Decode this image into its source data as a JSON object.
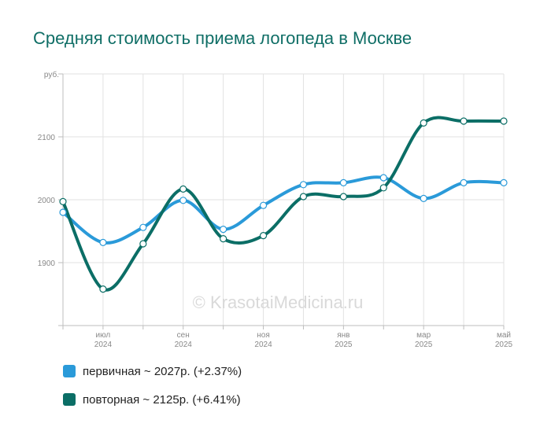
{
  "title": "Средняя стоимость приема логопеда в Москве",
  "watermark": "© KrasotaiMedicina.ru",
  "colors": {
    "primary": "#2a9ad9",
    "secondary": "#0b6e66",
    "title": "#0f6e66"
  },
  "legend": [
    {
      "label": "первичная ~ 2027р. (+2.37%)",
      "color": "#2a9ad9"
    },
    {
      "label": "повторная ~ 2125р. (+6.41%)",
      "color": "#0b6e66"
    }
  ],
  "chart_data": {
    "type": "line",
    "title": "Средняя стоимость приема логопеда в Москве",
    "ylabel": "руб.",
    "ylim": [
      1800,
      2200
    ],
    "yticks": [
      1900,
      2000,
      2100
    ],
    "x": [
      "2024-06",
      "2024-07",
      "2024-08",
      "2024-09",
      "2024-10",
      "2024-11",
      "2024-12",
      "2025-01",
      "2025-02",
      "2025-03",
      "2025-04",
      "2025-05"
    ],
    "xtick_labels": [
      {
        "month": "июл",
        "year": "2024",
        "index": 1
      },
      {
        "month": "сен",
        "year": "2024",
        "index": 3
      },
      {
        "month": "ноя",
        "year": "2024",
        "index": 5
      },
      {
        "month": "янв",
        "year": "2025",
        "index": 7
      },
      {
        "month": "мар",
        "year": "2025",
        "index": 9
      },
      {
        "month": "май",
        "year": "2025",
        "index": 11
      }
    ],
    "series": [
      {
        "name": "первичная",
        "color": "#2a9ad9",
        "values": [
          1980,
          1932,
          1956,
          1999,
          1953,
          1991,
          2024,
          2027,
          2035,
          2002,
          2027,
          2027
        ]
      },
      {
        "name": "повторная",
        "color": "#0b6e66",
        "values": [
          1997,
          1858,
          1930,
          2017,
          1938,
          1943,
          2005,
          2005,
          2019,
          2122,
          2125,
          2125
        ]
      }
    ],
    "grid": true
  }
}
